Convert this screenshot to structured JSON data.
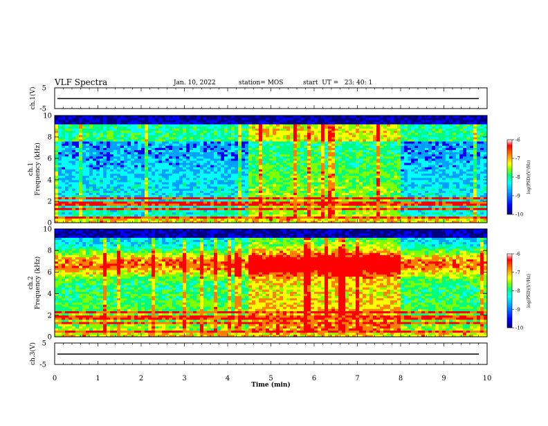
{
  "header": {
    "title": "VLF Spectra",
    "date": "Jan. 10, 2022",
    "station": "station= MOS",
    "start_ut": "start  UT =   23: 40: 1"
  },
  "colors": {
    "spectrogram_scale": [
      "#00007f",
      "#0000ff",
      "#00a0ff",
      "#00ffff",
      "#00ff80",
      "#80ff00",
      "#ffff00",
      "#ff8000",
      "#ff0000",
      "#ffffff"
    ],
    "background_low": "#00007f",
    "band_edges": "#000000"
  },
  "chart_data": [
    {
      "type": "line",
      "panel": "ch1-waveform",
      "ylabel": "ch.1(V)",
      "ylim": [
        -5,
        5
      ],
      "yticks": [
        "5",
        "-5"
      ],
      "xlim": [
        0,
        10
      ],
      "series": [
        {
          "values_description_free": true,
          "baseline": 0
        }
      ]
    },
    {
      "type": "heatmap",
      "panel": "ch1-spectrogram",
      "ylabel": "ch.1\nFrequency (kHz)",
      "ylabel_lines": [
        "ch.1",
        "Frequency (kHz)"
      ],
      "ylim": [
        0,
        10
      ],
      "yticks": [
        "0",
        "2",
        "4",
        "6",
        "8",
        "10"
      ],
      "xlim": [
        0,
        10
      ],
      "enhanced_interval_min": [
        4.5,
        8.0
      ],
      "colorbar": {
        "label": "log(PSD)(V²/Hz)",
        "range": [
          -10,
          -6
        ],
        "ticks": [
          "-6",
          "-7",
          "-8",
          "-9",
          "-10"
        ]
      }
    },
    {
      "type": "heatmap",
      "panel": "ch2-spectrogram",
      "ylabel_lines": [
        "ch.2",
        "Frequency (kHz)"
      ],
      "ylim": [
        0,
        10
      ],
      "yticks": [
        "0",
        "2",
        "4",
        "6",
        "8",
        "10"
      ],
      "xlim": [
        0,
        10
      ],
      "enhanced_interval_min": [
        4.5,
        8.0
      ],
      "colorbar": {
        "label": "log(PSD)(V²/Hz)",
        "range": [
          -10,
          -6
        ],
        "ticks": [
          "-6",
          "-7",
          "-8",
          "-9",
          "-10"
        ]
      }
    },
    {
      "type": "line",
      "panel": "ch3-waveform",
      "ylabel": "ch.3(V)",
      "ylim": [
        -5,
        5
      ],
      "yticks": [
        "5",
        "-5"
      ],
      "xlim": [
        0,
        10
      ],
      "xlabel": "Time (min)",
      "xticks": [
        "0",
        "1",
        "2",
        "3",
        "4",
        "5",
        "6",
        "7",
        "8",
        "9",
        "10"
      ],
      "series": [
        {
          "baseline": 0
        }
      ]
    }
  ]
}
